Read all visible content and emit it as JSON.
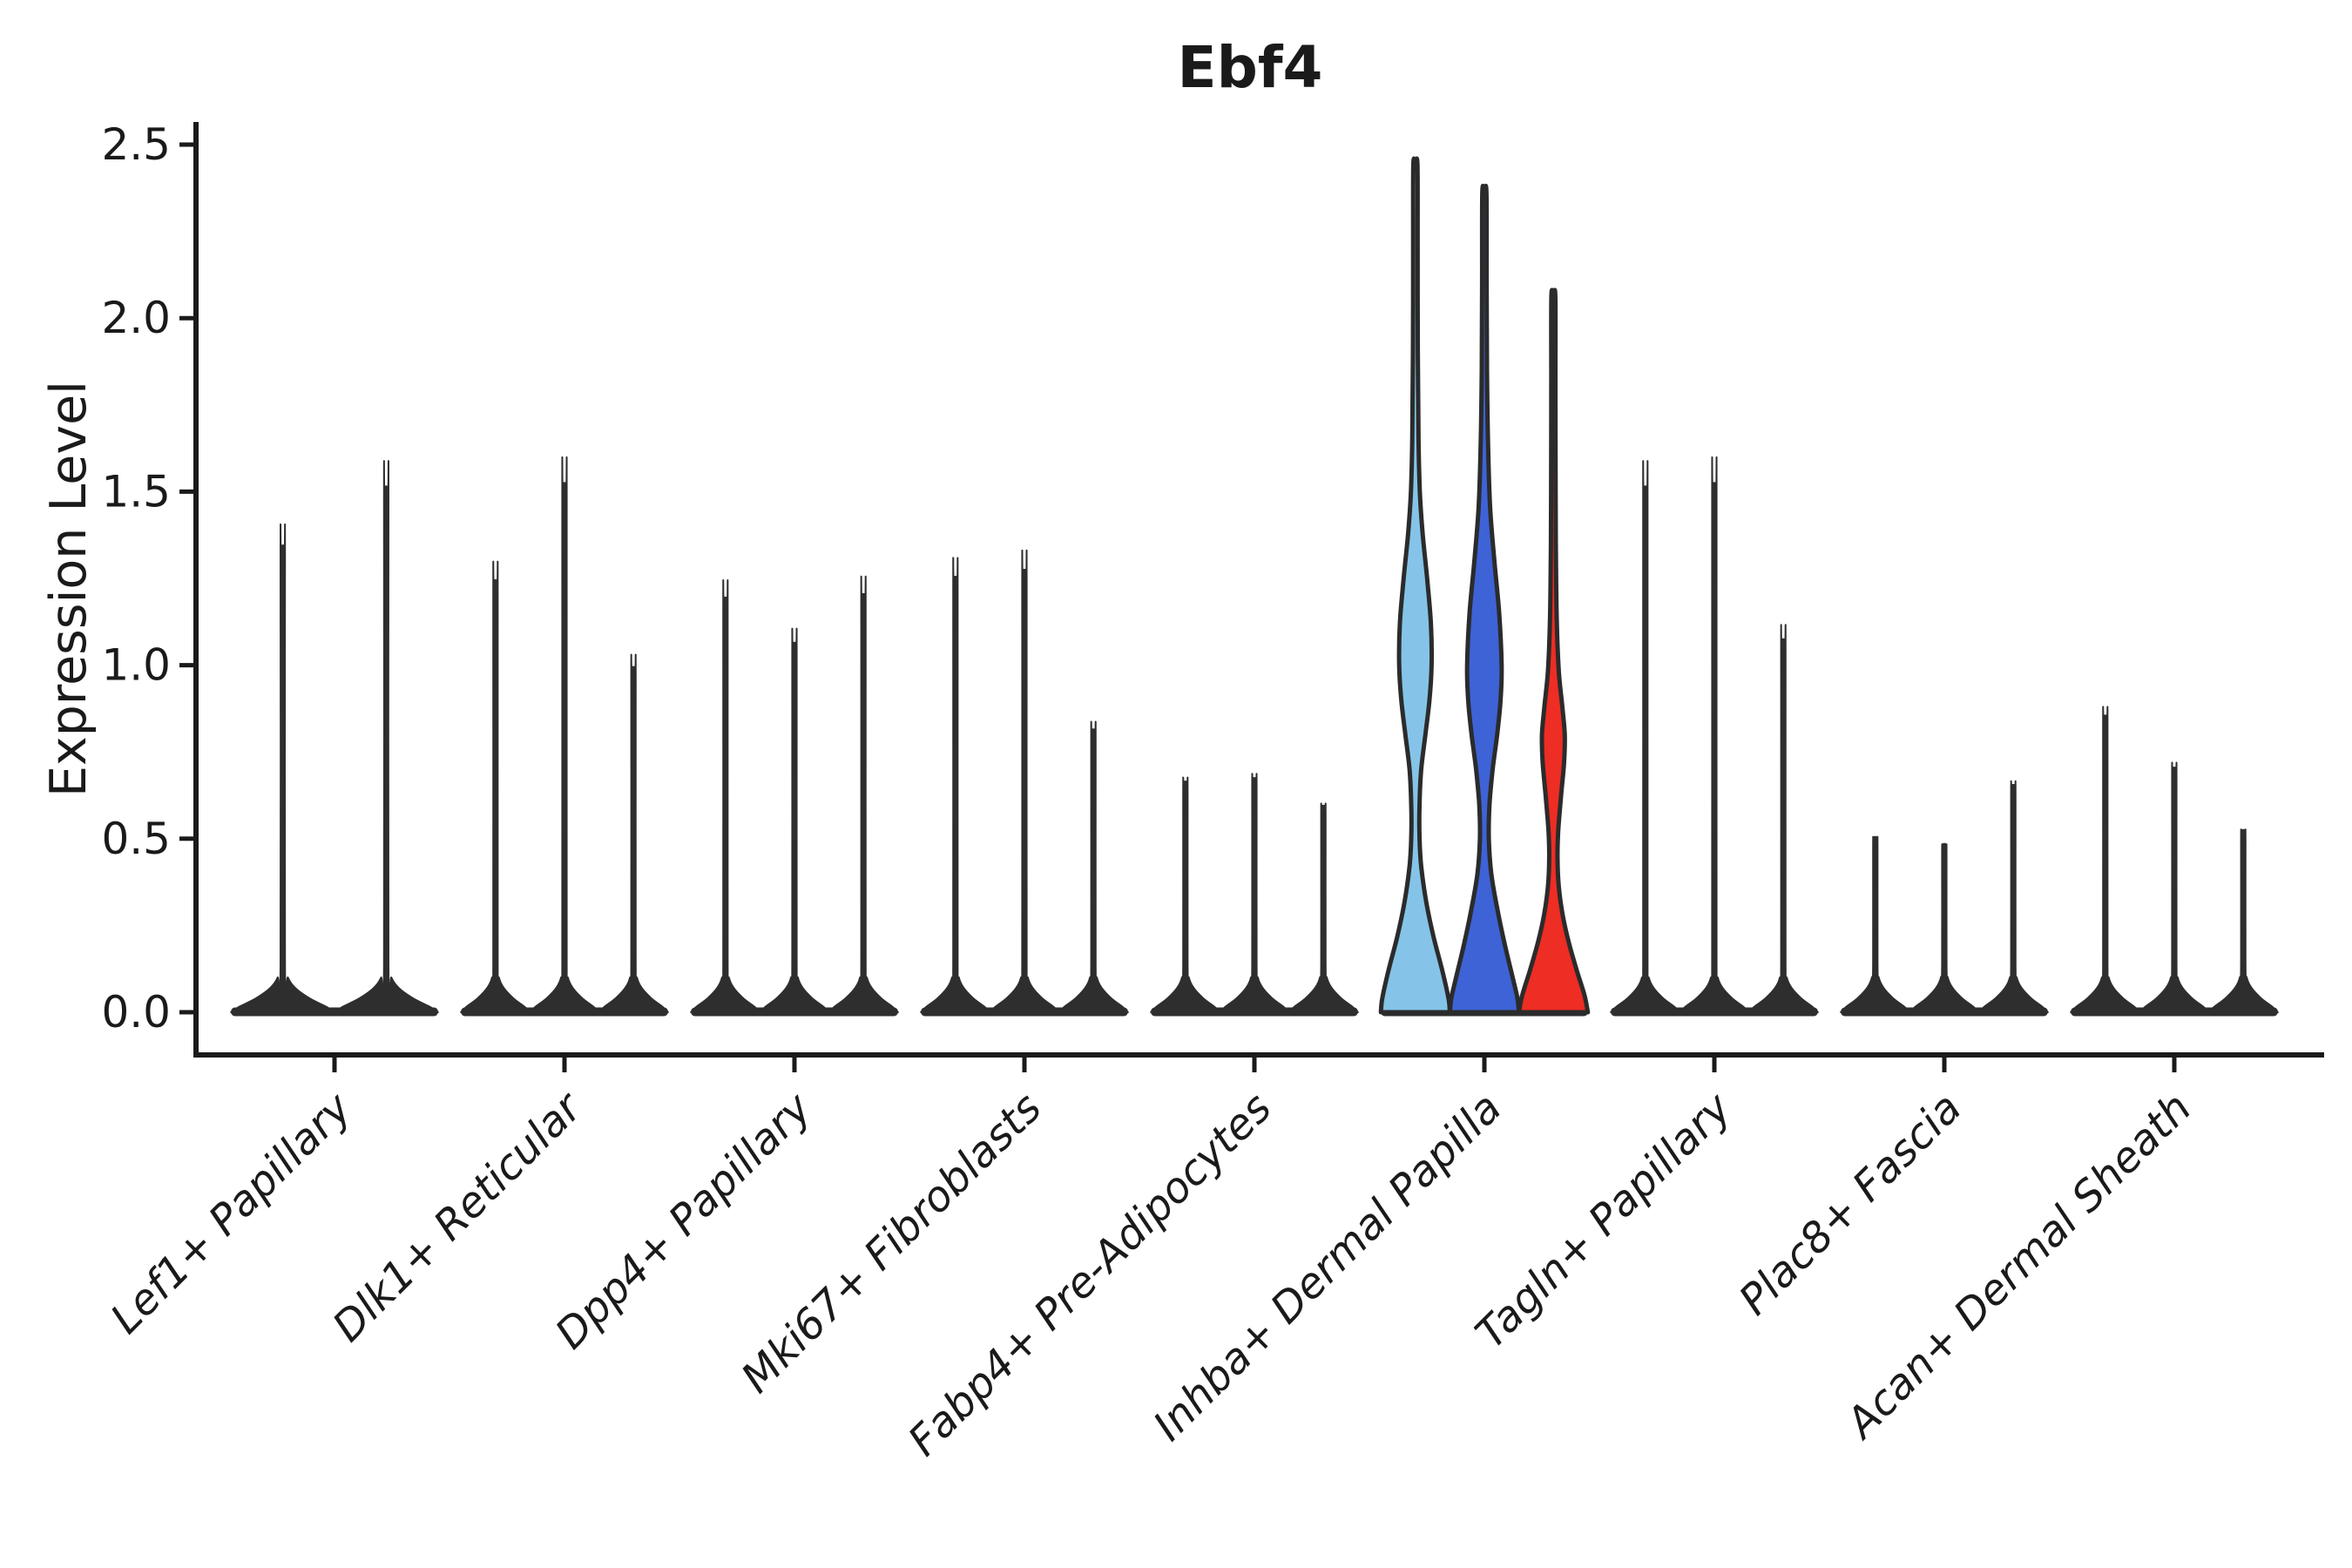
{
  "title": "Ebf4",
  "y_axis": {
    "label": "Expression Level",
    "tick_labels": [
      "0.0",
      "0.5",
      "1.0",
      "1.5",
      "2.0",
      "2.5"
    ],
    "tick_values": [
      0.0,
      0.5,
      1.0,
      1.5,
      2.0,
      2.5
    ]
  },
  "colors": {
    "default_violin": "#2e2e2e",
    "outline": "#2b2b2b",
    "light_blue": "#85C4E8",
    "dark_blue": "#3D63D6",
    "red": "#EE2D24",
    "axis": "#1a1a1a"
  },
  "chart_data": {
    "type": "violin",
    "title": "Ebf4",
    "xlabel": "",
    "ylabel": "Expression Level",
    "ylim": [
      0,
      2.6
    ],
    "yticks": [
      0.0,
      0.5,
      1.0,
      1.5,
      2.0,
      2.5
    ],
    "grid": false,
    "legend": "none",
    "categories": [
      "Lef1+ Papillary",
      "Dlk1+ Reticular",
      "Dpp4+ Papillary",
      "Mki67+ Fibroblasts",
      "Fabp4+ Pre-Adipocytes",
      "Inhba+ Dermal Papilla",
      "Tagln+ Papillary",
      "Plac8+ Fascia",
      "Acan+ Dermal Sheath"
    ],
    "groups": [
      {
        "category": "Lef1+ Papillary",
        "violins": [
          {
            "max": 1.34,
            "color": "default_violin"
          },
          {
            "max": 1.51,
            "color": "default_violin"
          }
        ]
      },
      {
        "category": "Dlk1+ Reticular",
        "violins": [
          {
            "max": 1.24,
            "color": "default_violin"
          },
          {
            "max": 1.52,
            "color": "default_violin"
          },
          {
            "max": 0.99,
            "color": "default_violin"
          }
        ]
      },
      {
        "category": "Dpp4+ Papillary",
        "violins": [
          {
            "max": 1.19,
            "color": "default_violin"
          },
          {
            "max": 1.06,
            "color": "default_violin"
          },
          {
            "max": 1.2,
            "color": "default_violin"
          }
        ]
      },
      {
        "category": "Mki67+ Fibroblasts",
        "violins": [
          {
            "max": 1.25,
            "color": "default_violin"
          },
          {
            "max": 1.27,
            "color": "default_violin"
          },
          {
            "max": 0.81,
            "color": "default_violin"
          }
        ]
      },
      {
        "category": "Fabp4+ Pre-Adipocytes",
        "violins": [
          {
            "max": 0.66,
            "color": "default_violin"
          },
          {
            "max": 0.67,
            "color": "default_violin"
          },
          {
            "max": 0.59,
            "color": "default_violin"
          }
        ]
      },
      {
        "category": "Inhba+ Dermal Papilla",
        "violins": [
          {
            "max": 2.44,
            "color": "light_blue",
            "profile": [
              [
                2.44,
                0.06
              ],
              [
                2.2,
                0.065
              ],
              [
                1.9,
                0.07
              ],
              [
                1.65,
                0.09
              ],
              [
                1.5,
                0.13
              ],
              [
                1.38,
                0.21
              ],
              [
                1.25,
                0.34
              ],
              [
                1.12,
                0.45
              ],
              [
                1.0,
                0.47
              ],
              [
                0.9,
                0.41
              ],
              [
                0.8,
                0.29
              ],
              [
                0.7,
                0.17
              ],
              [
                0.6,
                0.12
              ],
              [
                0.5,
                0.12
              ],
              [
                0.42,
                0.17
              ],
              [
                0.32,
                0.31
              ],
              [
                0.22,
                0.52
              ],
              [
                0.12,
                0.78
              ],
              [
                0.04,
                0.96
              ],
              [
                0.0,
                1.0
              ]
            ]
          },
          {
            "max": 2.36,
            "color": "dark_blue",
            "profile": [
              [
                2.36,
                0.06
              ],
              [
                2.1,
                0.065
              ],
              [
                1.85,
                0.075
              ],
              [
                1.62,
                0.11
              ],
              [
                1.45,
                0.17
              ],
              [
                1.3,
                0.29
              ],
              [
                1.15,
                0.43
              ],
              [
                1.0,
                0.5
              ],
              [
                0.9,
                0.47
              ],
              [
                0.8,
                0.37
              ],
              [
                0.7,
                0.24
              ],
              [
                0.6,
                0.15
              ],
              [
                0.5,
                0.13
              ],
              [
                0.4,
                0.2
              ],
              [
                0.3,
                0.37
              ],
              [
                0.2,
                0.58
              ],
              [
                0.1,
                0.82
              ],
              [
                0.04,
                0.96
              ],
              [
                0.0,
                1.0
              ]
            ]
          },
          {
            "max": 2.06,
            "color": "red",
            "profile": [
              [
                2.06,
                0.055
              ],
              [
                1.8,
                0.06
              ],
              [
                1.5,
                0.065
              ],
              [
                1.3,
                0.075
              ],
              [
                1.12,
                0.1
              ],
              [
                0.98,
                0.16
              ],
              [
                0.88,
                0.26
              ],
              [
                0.8,
                0.33
              ],
              [
                0.72,
                0.31
              ],
              [
                0.62,
                0.22
              ],
              [
                0.52,
                0.14
              ],
              [
                0.44,
                0.12
              ],
              [
                0.36,
                0.16
              ],
              [
                0.28,
                0.27
              ],
              [
                0.2,
                0.45
              ],
              [
                0.12,
                0.68
              ],
              [
                0.05,
                0.9
              ],
              [
                0.0,
                1.0
              ]
            ]
          }
        ]
      },
      {
        "category": "Tagln+ Papillary",
        "violins": [
          {
            "max": 1.51,
            "color": "default_violin"
          },
          {
            "max": 1.52,
            "color": "default_violin"
          },
          {
            "max": 1.07,
            "color": "default_violin"
          }
        ]
      },
      {
        "category": "Plac8+ Fascia",
        "violins": [
          {
            "max": 0.5,
            "color": "default_violin"
          },
          {
            "max": 0.48,
            "color": "default_violin"
          },
          {
            "max": 0.65,
            "color": "default_violin"
          }
        ]
      },
      {
        "category": "Acan+ Dermal Sheath",
        "violins": [
          {
            "max": 0.85,
            "color": "default_violin"
          },
          {
            "max": 0.7,
            "color": "default_violin"
          },
          {
            "max": 0.52,
            "color": "default_violin"
          }
        ]
      }
    ]
  }
}
